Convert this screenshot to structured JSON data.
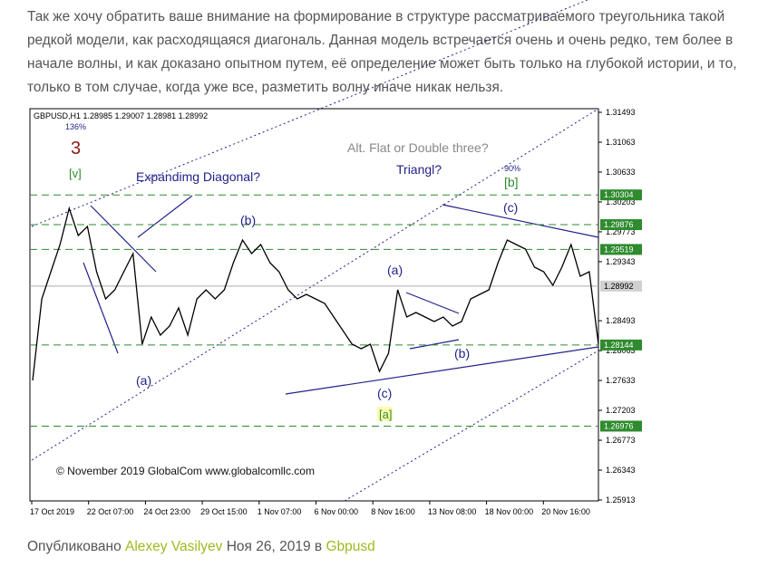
{
  "article": {
    "paragraph_lines": [
      "Так же хочу обратить ваше внимание на формирование в структуре рассматриваемого треугольника такой",
      "редкой модели, как расходящаяся диагональ. Данная модель встречается очень и очень редко, тем более в",
      "начале волны, и как доказано опытном путем, её определение может быть только на глубокой истории, и то,",
      "только в том случае, когда уже все, разметить волну иначе никак нельзя."
    ]
  },
  "chart": {
    "type": "line",
    "header": "GBPUSD,H1  1.28985 1.29007 1.28981 1.28992",
    "copyright": "© November 2019 GlobalCom www.globalcomllc.com",
    "ylim": [
      1.25913,
      1.31493
    ],
    "yticks": [
      1.31493,
      1.31063,
      1.30633,
      1.30203,
      1.29773,
      1.29343,
      1.28493,
      1.28063,
      1.27633,
      1.27203,
      1.26773,
      1.26343,
      1.25913
    ],
    "categories": [
      "17 Oct 2019",
      "22 Oct 07:00",
      "24 Oct 23:00",
      "29 Oct 15:00",
      "1 Nov 07:00",
      "6 Nov 00:00",
      "8 Nov 16:00",
      "13 Nov 08:00",
      "18 Nov 00:00",
      "20 Nov 16:00"
    ],
    "levels": [
      1.30304,
      1.29876,
      1.29519,
      1.28144,
      1.26976
    ],
    "level_color": "#2e8b2e",
    "current": 1.28992,
    "price": {
      "color": "#000000",
      "values": [
        1.27634,
        1.28807,
        1.29198,
        1.29589,
        1.30111,
        1.2972,
        1.2985,
        1.29198,
        1.28807,
        1.28938,
        1.29198,
        1.29459,
        1.28155,
        1.28546,
        1.28286,
        1.28416,
        1.28677,
        1.28286,
        1.28807,
        1.28938,
        1.28807,
        1.28938,
        1.29329,
        1.29655,
        1.29459,
        1.29589,
        1.29329,
        1.29198,
        1.28938,
        1.28807,
        1.28872,
        1.28807,
        1.28742,
        1.28546,
        1.28351,
        1.28155,
        1.2809,
        1.28155,
        1.27764,
        1.28025,
        1.28938,
        1.28546,
        1.28612,
        1.28546,
        1.28481,
        1.28546,
        1.28416,
        1.28481,
        1.28807,
        1.28872,
        1.28938,
        1.29329,
        1.29655,
        1.29589,
        1.29524,
        1.29264,
        1.29198,
        1.29003,
        1.29264,
        1.29589,
        1.29133,
        1.29198,
        1.28155
      ]
    },
    "annotations": [
      "3",
      "[v]",
      "136%",
      "Expandimg Diagonal?",
      "(b)",
      "Alt. Flat or Double three?",
      "Triangl?",
      "90%",
      "[b]",
      "(c)",
      "(a)",
      "(a)",
      "(b)",
      "(c)",
      "[a]"
    ]
  },
  "footer": {
    "prefix": "Опубликовано",
    "author": "Alexey Vasilyev",
    "date": "Ноя 26, 2019",
    "in": "в",
    "category": "Gbpusd"
  }
}
